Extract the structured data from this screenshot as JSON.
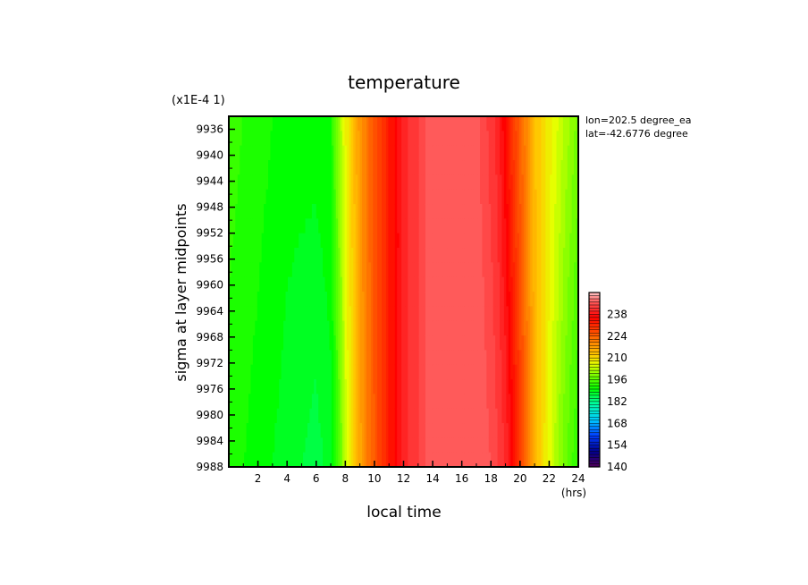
{
  "chart_data": {
    "type": "heatmap",
    "title": "temperature",
    "xlabel": "local time",
    "x_unit": "(hrs)",
    "ylabel": "sigma at layer midpoints",
    "y_scale_note": "(x1E-4 1)",
    "annotations": [
      "lon=202.5 degree_ea",
      "lat=-42.6776 degree"
    ],
    "xlim": [
      0,
      24
    ],
    "x_ticks": [
      2,
      4,
      6,
      8,
      10,
      12,
      14,
      16,
      18,
      20,
      22,
      24
    ],
    "ylim": [
      9934,
      9988
    ],
    "y_ticks": [
      9936,
      9940,
      9944,
      9948,
      9952,
      9956,
      9960,
      9964,
      9968,
      9972,
      9976,
      9980,
      9984,
      9988
    ],
    "y_inverted": true,
    "colorbar": {
      "min": 140,
      "max": 252,
      "step": 2,
      "tick_labels": [
        "140",
        "154",
        "168",
        "182",
        "196",
        "210",
        "224",
        "238"
      ]
    },
    "field": {
      "description_keys": [
        "x_hours",
        "temperature_top",
        "temperature_bottom"
      ],
      "x_hours": [
        0,
        1,
        2,
        3,
        4,
        5,
        6,
        7,
        7.5,
        8,
        8.5,
        9,
        9.5,
        10,
        10.5,
        11,
        11.5,
        12,
        12.5,
        13,
        13.5,
        14,
        14.5,
        15,
        16,
        17,
        17.5,
        18,
        18.5,
        19,
        19.5,
        20,
        20.5,
        21,
        22,
        23,
        24
      ],
      "temperature_top": [
        194,
        193,
        192,
        191,
        190,
        190,
        190,
        191,
        200,
        207,
        212,
        218,
        222,
        226,
        229,
        233,
        236,
        240,
        242,
        243,
        245,
        246,
        246,
        246,
        246,
        246,
        244,
        242,
        240,
        235,
        229,
        224,
        219,
        213,
        208,
        203,
        198
      ],
      "temperature_bottom": [
        192,
        191,
        190,
        189,
        188,
        187,
        186,
        188,
        194,
        204,
        210,
        216,
        221,
        225,
        229,
        233,
        236,
        240,
        242,
        243,
        245,
        246,
        246,
        246,
        246,
        246,
        246,
        245,
        243,
        241,
        236,
        229,
        222,
        215,
        206,
        198,
        193
      ]
    }
  }
}
